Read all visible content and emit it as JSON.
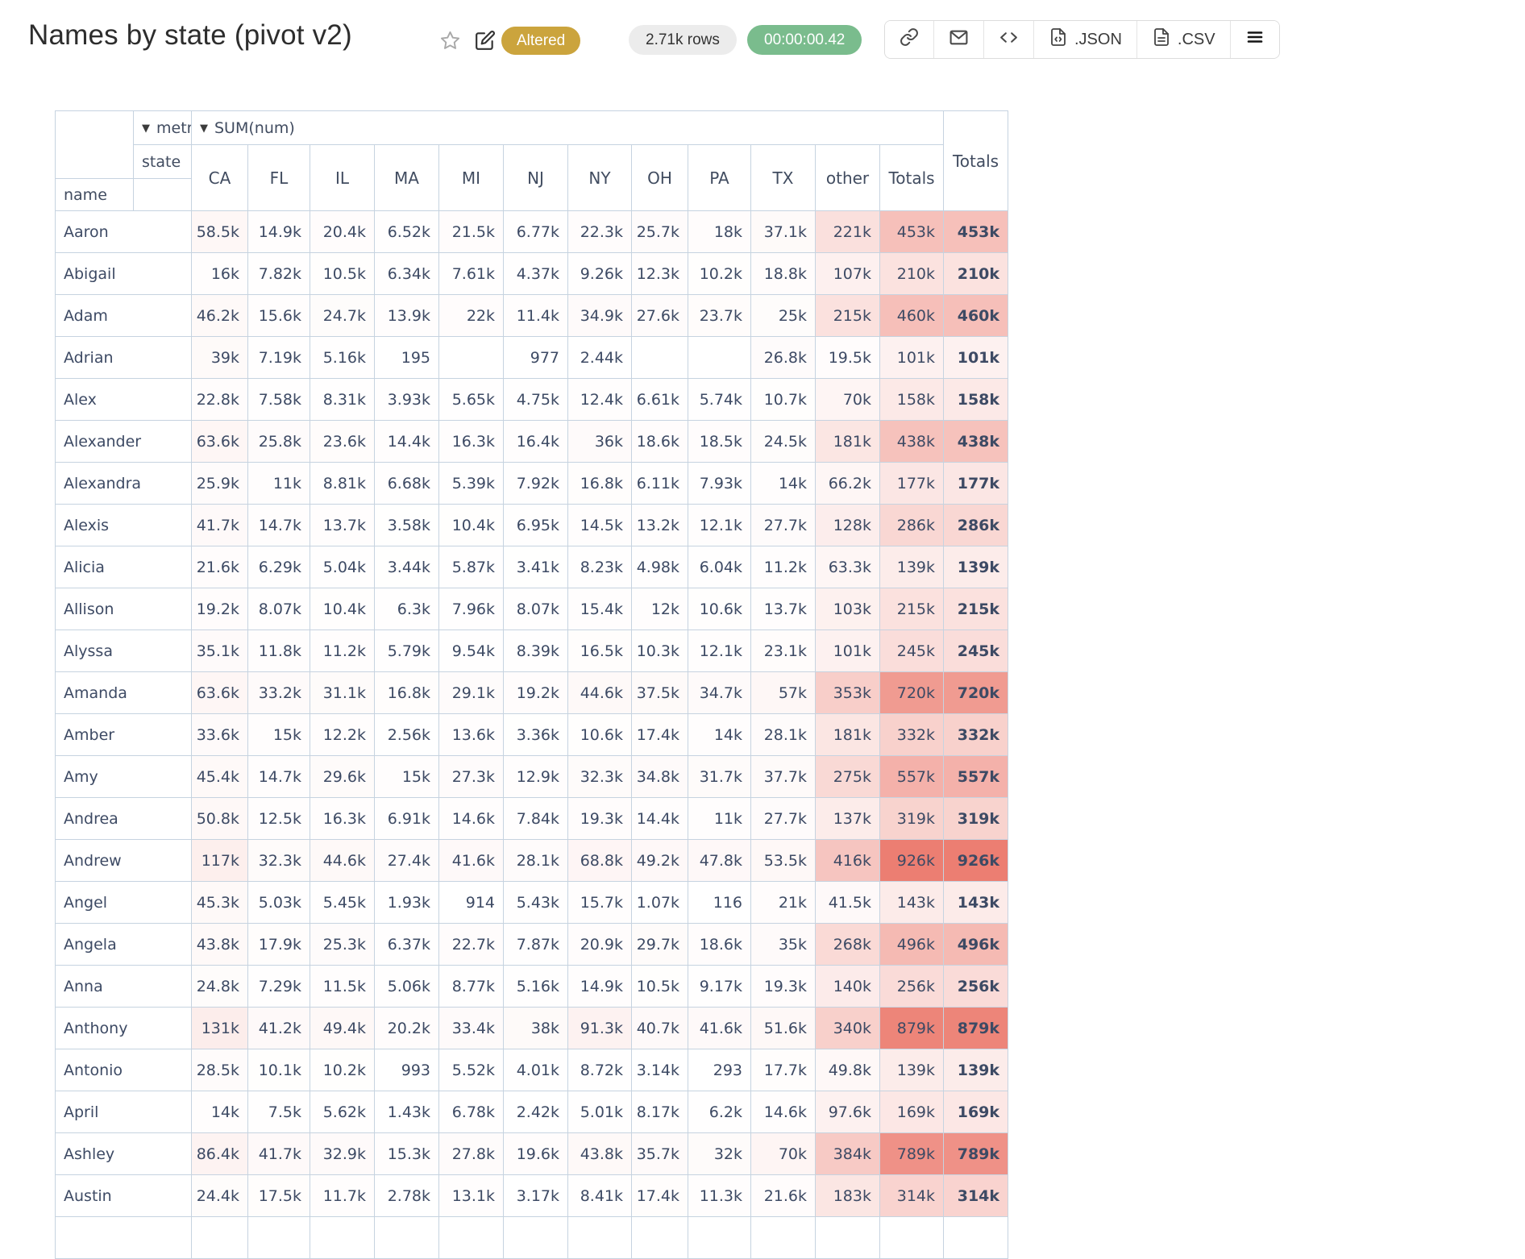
{
  "header": {
    "title": "Names by state (pivot v2)",
    "altered_badge": "Altered",
    "rows_count": "2.71k rows",
    "exec_time": "00:00:00.42",
    "colors": {
      "altered_bg": "#cba43d",
      "time_bg": "#7abc8d",
      "rows_bg": "#ececec"
    }
  },
  "toolbar": {
    "json_label": ".JSON",
    "csv_label": ".CSV"
  },
  "pivot": {
    "metric_dropdown_label": "metric",
    "value_dropdown_label": "SUM(num)",
    "col_axis_label": "state",
    "row_axis_label": "name",
    "grand_total_label": "Totals",
    "heat_max_value": 926000,
    "heat_color": "#ec7e72",
    "columns": [
      "CA",
      "FL",
      "IL",
      "MA",
      "MI",
      "NJ",
      "NY",
      "OH",
      "PA",
      "TX",
      "other",
      "Totals"
    ],
    "rows": [
      {
        "name": "Aaron",
        "values": [
          "58.5k",
          "14.9k",
          "20.4k",
          "6.52k",
          "21.5k",
          "6.77k",
          "22.3k",
          "25.7k",
          "18k",
          "37.1k",
          "221k",
          "453k"
        ],
        "total": "453k"
      },
      {
        "name": "Abigail",
        "values": [
          "16k",
          "7.82k",
          "10.5k",
          "6.34k",
          "7.61k",
          "4.37k",
          "9.26k",
          "12.3k",
          "10.2k",
          "18.8k",
          "107k",
          "210k"
        ],
        "total": "210k"
      },
      {
        "name": "Adam",
        "values": [
          "46.2k",
          "15.6k",
          "24.7k",
          "13.9k",
          "22k",
          "11.4k",
          "34.9k",
          "27.6k",
          "23.7k",
          "25k",
          "215k",
          "460k"
        ],
        "total": "460k"
      },
      {
        "name": "Adrian",
        "values": [
          "39k",
          "7.19k",
          "5.16k",
          "195",
          "",
          "977",
          "2.44k",
          "",
          "",
          "26.8k",
          "19.5k",
          "101k"
        ],
        "total": "101k"
      },
      {
        "name": "Alex",
        "values": [
          "22.8k",
          "7.58k",
          "8.31k",
          "3.93k",
          "5.65k",
          "4.75k",
          "12.4k",
          "6.61k",
          "5.74k",
          "10.7k",
          "70k",
          "158k"
        ],
        "total": "158k"
      },
      {
        "name": "Alexander",
        "values": [
          "63.6k",
          "25.8k",
          "23.6k",
          "14.4k",
          "16.3k",
          "16.4k",
          "36k",
          "18.6k",
          "18.5k",
          "24.5k",
          "181k",
          "438k"
        ],
        "total": "438k"
      },
      {
        "name": "Alexandra",
        "values": [
          "25.9k",
          "11k",
          "8.81k",
          "6.68k",
          "5.39k",
          "7.92k",
          "16.8k",
          "6.11k",
          "7.93k",
          "14k",
          "66.2k",
          "177k"
        ],
        "total": "177k"
      },
      {
        "name": "Alexis",
        "values": [
          "41.7k",
          "14.7k",
          "13.7k",
          "3.58k",
          "10.4k",
          "6.95k",
          "14.5k",
          "13.2k",
          "12.1k",
          "27.7k",
          "128k",
          "286k"
        ],
        "total": "286k"
      },
      {
        "name": "Alicia",
        "values": [
          "21.6k",
          "6.29k",
          "5.04k",
          "3.44k",
          "5.87k",
          "3.41k",
          "8.23k",
          "4.98k",
          "6.04k",
          "11.2k",
          "63.3k",
          "139k"
        ],
        "total": "139k"
      },
      {
        "name": "Allison",
        "values": [
          "19.2k",
          "8.07k",
          "10.4k",
          "6.3k",
          "7.96k",
          "8.07k",
          "15.4k",
          "12k",
          "10.6k",
          "13.7k",
          "103k",
          "215k"
        ],
        "total": "215k"
      },
      {
        "name": "Alyssa",
        "values": [
          "35.1k",
          "11.8k",
          "11.2k",
          "5.79k",
          "9.54k",
          "8.39k",
          "16.5k",
          "10.3k",
          "12.1k",
          "23.1k",
          "101k",
          "245k"
        ],
        "total": "245k"
      },
      {
        "name": "Amanda",
        "values": [
          "63.6k",
          "33.2k",
          "31.1k",
          "16.8k",
          "29.1k",
          "19.2k",
          "44.6k",
          "37.5k",
          "34.7k",
          "57k",
          "353k",
          "720k"
        ],
        "total": "720k"
      },
      {
        "name": "Amber",
        "values": [
          "33.6k",
          "15k",
          "12.2k",
          "2.56k",
          "13.6k",
          "3.36k",
          "10.6k",
          "17.4k",
          "14k",
          "28.1k",
          "181k",
          "332k"
        ],
        "total": "332k"
      },
      {
        "name": "Amy",
        "values": [
          "45.4k",
          "14.7k",
          "29.6k",
          "15k",
          "27.3k",
          "12.9k",
          "32.3k",
          "34.8k",
          "31.7k",
          "37.7k",
          "275k",
          "557k"
        ],
        "total": "557k"
      },
      {
        "name": "Andrea",
        "values": [
          "50.8k",
          "12.5k",
          "16.3k",
          "6.91k",
          "14.6k",
          "7.84k",
          "19.3k",
          "14.4k",
          "11k",
          "27.7k",
          "137k",
          "319k"
        ],
        "total": "319k"
      },
      {
        "name": "Andrew",
        "values": [
          "117k",
          "32.3k",
          "44.6k",
          "27.4k",
          "41.6k",
          "28.1k",
          "68.8k",
          "49.2k",
          "47.8k",
          "53.5k",
          "416k",
          "926k"
        ],
        "total": "926k"
      },
      {
        "name": "Angel",
        "values": [
          "45.3k",
          "5.03k",
          "5.45k",
          "1.93k",
          "914",
          "5.43k",
          "15.7k",
          "1.07k",
          "116",
          "21k",
          "41.5k",
          "143k"
        ],
        "total": "143k"
      },
      {
        "name": "Angela",
        "values": [
          "43.8k",
          "17.9k",
          "25.3k",
          "6.37k",
          "22.7k",
          "7.87k",
          "20.9k",
          "29.7k",
          "18.6k",
          "35k",
          "268k",
          "496k"
        ],
        "total": "496k"
      },
      {
        "name": "Anna",
        "values": [
          "24.8k",
          "7.29k",
          "11.5k",
          "5.06k",
          "8.77k",
          "5.16k",
          "14.9k",
          "10.5k",
          "9.17k",
          "19.3k",
          "140k",
          "256k"
        ],
        "total": "256k"
      },
      {
        "name": "Anthony",
        "values": [
          "131k",
          "41.2k",
          "49.4k",
          "20.2k",
          "33.4k",
          "38k",
          "91.3k",
          "40.7k",
          "41.6k",
          "51.6k",
          "340k",
          "879k"
        ],
        "total": "879k"
      },
      {
        "name": "Antonio",
        "values": [
          "28.5k",
          "10.1k",
          "10.2k",
          "993",
          "5.52k",
          "4.01k",
          "8.72k",
          "3.14k",
          "293",
          "17.7k",
          "49.8k",
          "139k"
        ],
        "total": "139k"
      },
      {
        "name": "April",
        "values": [
          "14k",
          "7.5k",
          "5.62k",
          "1.43k",
          "6.78k",
          "2.42k",
          "5.01k",
          "8.17k",
          "6.2k",
          "14.6k",
          "97.6k",
          "169k"
        ],
        "total": "169k"
      },
      {
        "name": "Ashley",
        "values": [
          "86.4k",
          "41.7k",
          "32.9k",
          "15.3k",
          "27.8k",
          "19.6k",
          "43.8k",
          "35.7k",
          "32k",
          "70k",
          "384k",
          "789k"
        ],
        "total": "789k"
      },
      {
        "name": "Austin",
        "values": [
          "24.4k",
          "17.5k",
          "11.7k",
          "2.78k",
          "13.1k",
          "3.17k",
          "8.41k",
          "17.4k",
          "11.3k",
          "21.6k",
          "183k",
          "314k"
        ],
        "total": "314k"
      }
    ]
  }
}
